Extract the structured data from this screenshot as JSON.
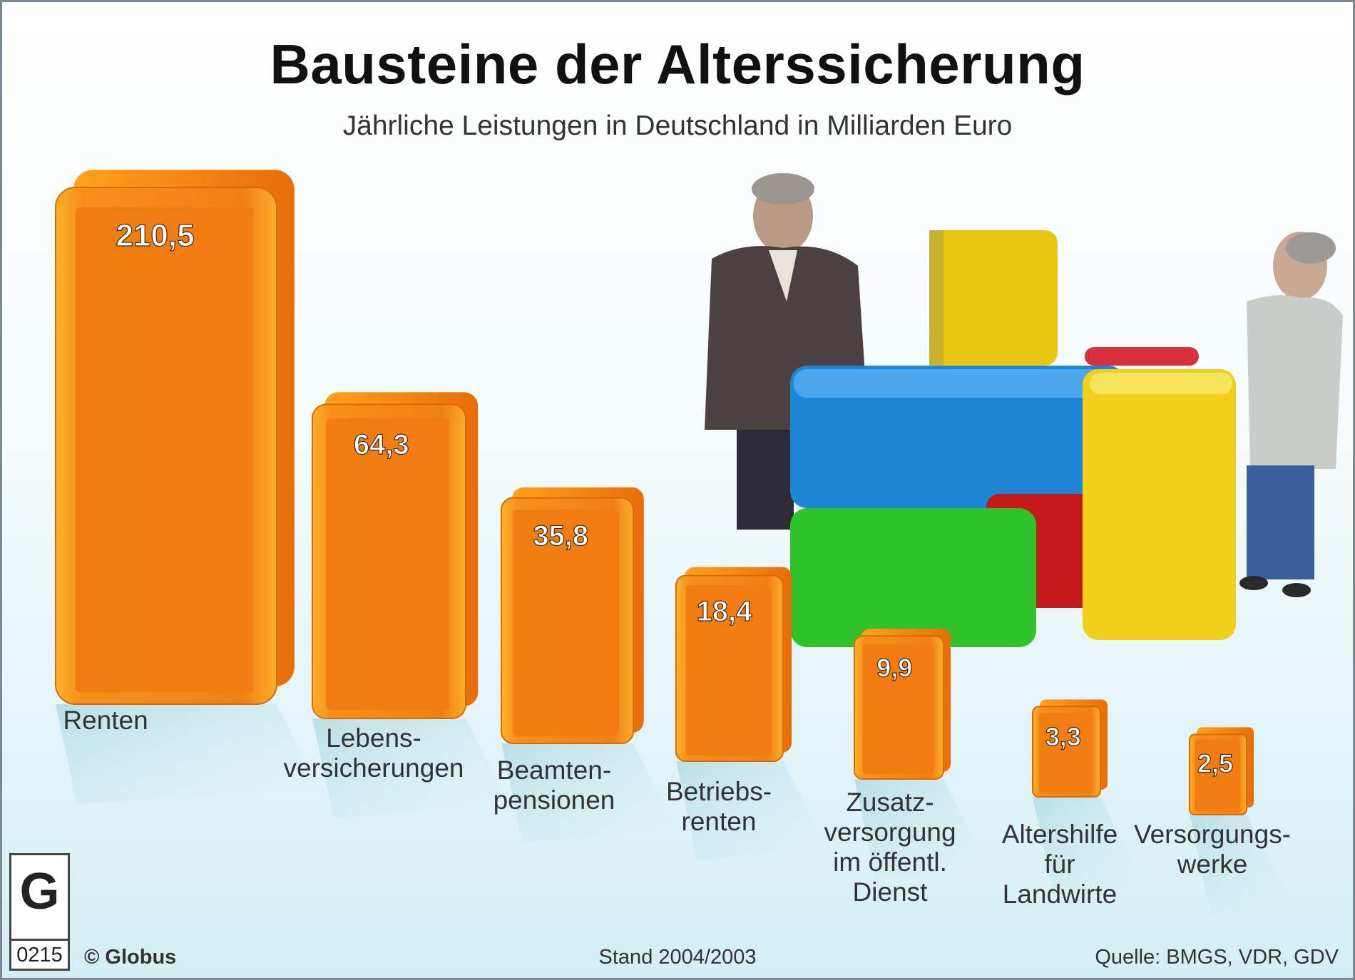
{
  "chart_data": {
    "type": "bar",
    "title": "Bausteine der Alterssicherung",
    "subtitle": "Jährliche Leistungen in Deutschland in Milliarden Euro",
    "categories": [
      [
        "Renten"
      ],
      [
        "Lebens-",
        "versicherungen"
      ],
      [
        "Beamten-",
        "pensionen"
      ],
      [
        "Betriebs-",
        "renten"
      ],
      [
        "Zusatz-",
        "versorgung",
        "im öffentl.",
        "Dienst"
      ],
      [
        "Altershilfe",
        "für",
        "Landwirte"
      ],
      [
        "Versorgungs-",
        "werke"
      ]
    ],
    "values": [
      210.5,
      64.3,
      35.8,
      18.4,
      9.9,
      3.3,
      2.5
    ],
    "value_labels": [
      "210,5",
      "64,3",
      "35,8",
      "18,4",
      "9,9",
      "3,3",
      "2,5"
    ],
    "bar_color": "#f07b12",
    "scale": "nonlinear (bars stylized, not to scale)"
  },
  "footer": {
    "copyright": "© Globus",
    "stand": "Stand 2004/2003",
    "source": "Quelle: BMGS, VDR, GDV"
  },
  "logo": {
    "letter": "G",
    "code": "0215"
  }
}
